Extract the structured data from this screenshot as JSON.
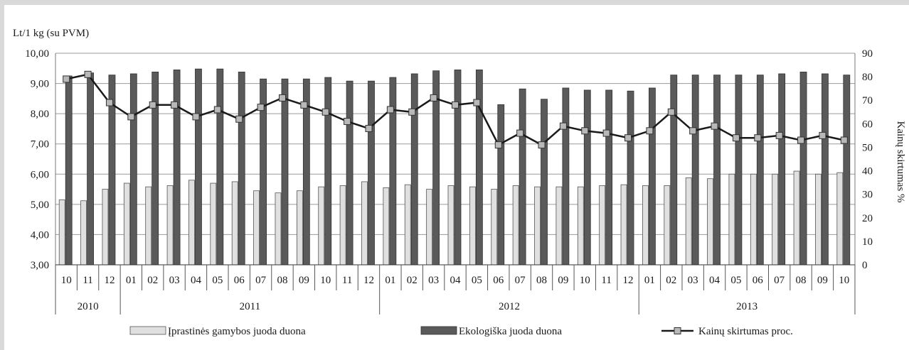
{
  "chart_data": {
    "type": "bar",
    "title": "",
    "ylabel_left": "Lt/1 kg (su PVM)",
    "ylabel_right": "Kainų skirtumas %",
    "ylim_left": [
      3,
      10
    ],
    "ylim_right": [
      0,
      90
    ],
    "y_ticks_left": [
      "3,00",
      "4,00",
      "5,00",
      "6,00",
      "7,00",
      "8,00",
      "9,00",
      "10,00"
    ],
    "y_ticks_right": [
      "0",
      "10",
      "20",
      "30",
      "40",
      "50",
      "60",
      "70",
      "80",
      "90"
    ],
    "grid": true,
    "legend_position": "bottom",
    "categories": [
      "10",
      "11",
      "12",
      "01",
      "02",
      "03",
      "04",
      "05",
      "06",
      "07",
      "08",
      "09",
      "10",
      "11",
      "12",
      "01",
      "02",
      "03",
      "04",
      "05",
      "06",
      "07",
      "08",
      "09",
      "10",
      "11",
      "12",
      "01",
      "02",
      "03",
      "04",
      "05",
      "06",
      "07",
      "08",
      "09",
      "10"
    ],
    "years": [
      {
        "label": "2010",
        "count": 3
      },
      {
        "label": "2011",
        "count": 12
      },
      {
        "label": "2012",
        "count": 12
      },
      {
        "label": "2013",
        "count": 10
      }
    ],
    "series": [
      {
        "name": "Įprastinės gamybos juoda duona",
        "type": "bar",
        "axis": "left",
        "color": "#e0e0e0",
        "values": [
          5.15,
          5.12,
          5.5,
          5.7,
          5.58,
          5.62,
          5.8,
          5.7,
          5.75,
          5.45,
          5.38,
          5.45,
          5.58,
          5.62,
          5.75,
          5.55,
          5.65,
          5.5,
          5.62,
          5.58,
          5.5,
          5.62,
          5.58,
          5.58,
          5.58,
          5.62,
          5.65,
          5.62,
          5.62,
          5.88,
          5.85,
          6.0,
          6.0,
          6.0,
          6.1,
          6.0,
          6.05
        ]
      },
      {
        "name": "Ekologiška juoda duona",
        "type": "bar",
        "axis": "left",
        "color": "#5a5a5a",
        "values": [
          9.25,
          9.35,
          9.28,
          9.32,
          9.38,
          9.45,
          9.48,
          9.48,
          9.38,
          9.15,
          9.15,
          9.15,
          9.2,
          9.08,
          9.08,
          9.2,
          9.32,
          9.42,
          9.45,
          9.45,
          8.3,
          8.82,
          8.48,
          8.85,
          8.78,
          8.78,
          8.75,
          8.85,
          9.28,
          9.28,
          9.28,
          9.28,
          9.28,
          9.32,
          9.38,
          9.32,
          9.28
        ]
      },
      {
        "name": "Kainų skirtumas proc.",
        "type": "line",
        "axis": "right",
        "color": "#1a1a1a",
        "values": [
          79,
          81,
          69,
          63,
          68,
          68,
          63,
          66,
          62,
          67,
          71,
          68,
          65,
          61,
          58,
          66,
          65,
          71,
          68,
          69,
          51,
          56,
          51,
          59,
          57,
          56,
          54,
          57,
          65,
          57,
          59,
          54,
          54,
          55,
          53,
          55,
          53
        ]
      }
    ]
  }
}
